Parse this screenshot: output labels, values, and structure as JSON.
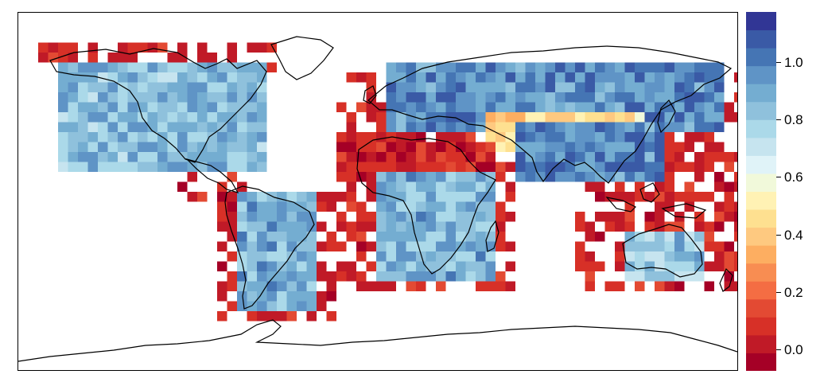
{
  "colorbar": {
    "ticks": [
      {
        "value": 0.0,
        "label": "0.0"
      },
      {
        "value": 0.2,
        "label": "0.2"
      },
      {
        "value": 0.4,
        "label": "0.4"
      },
      {
        "value": 0.6,
        "label": "0.6"
      },
      {
        "value": 0.8,
        "label": "0.8"
      },
      {
        "value": 1.0,
        "label": "1.0"
      }
    ],
    "range": [
      -0.075,
      1.175
    ],
    "palette": [
      "#a50026",
      "#c01a27",
      "#d73027",
      "#e34a33",
      "#f46d43",
      "#f88d52",
      "#fdae61",
      "#fec980",
      "#fee090",
      "#fff2b4",
      "#f1f9da",
      "#e0f3f8",
      "#c6e4ef",
      "#abd9e9",
      "#8fc1dc",
      "#74add1",
      "#5f94c6",
      "#4575b4",
      "#3a5aa6",
      "#313695"
    ]
  },
  "map": {
    "projection": "equirectangular",
    "grid_cell_deg": 5,
    "regions_mean_value": {
      "north_america_interior": 0.85,
      "south_america_interior": 0.88,
      "africa_subsahara": 0.87,
      "sahara": 0.05,
      "europe_russia": 0.97,
      "central_asia_desert": 0.45,
      "australia_interior": 0.82,
      "ocean_coastal": 0.05
    }
  }
}
